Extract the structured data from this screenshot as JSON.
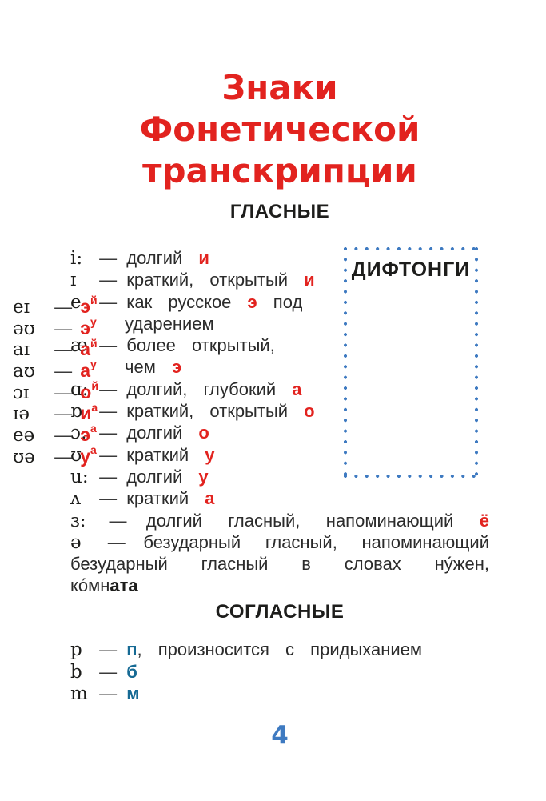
{
  "glyphs": {
    "dash": "—"
  },
  "colors": {
    "title_red": "#e2231f",
    "vowel_accent_red": "#e2231f",
    "consonant_accent_blue": "#166a94",
    "page_number_blue": "#3e7ac1",
    "dotted_border_blue": "#3e7ac1",
    "text_black": "#1d1d1b"
  },
  "title": {
    "lines": [
      "Знаки",
      "Фонетической",
      "транскрипции"
    ]
  },
  "sections": {
    "vowels": {
      "heading": "ГЛАСНЫЕ",
      "rows": [
        {
          "sym": "i:",
          "pre": "долгий ",
          "accent": "и"
        },
        {
          "sym": "ɪ",
          "pre": "краткий, открытый ",
          "accent": "и"
        },
        {
          "sym": "e",
          "pre": "как русское ",
          "accent": "э",
          "post": " под"
        },
        {
          "pre": "ударением"
        },
        {
          "sym": "æ",
          "pre": "более открытый,"
        },
        {
          "pre": "чем ",
          "accent": "э"
        },
        {
          "sym": "ɑ:",
          "pre": "долгий, глубокий ",
          "accent": "а"
        },
        {
          "sym": "ɒ",
          "pre": "краткий, открытый ",
          "accent": "о"
        },
        {
          "sym": "ɔ:",
          "pre": "долгий ",
          "accent": "о"
        },
        {
          "sym": "ʊ",
          "pre": "краткий ",
          "accent": "у"
        },
        {
          "sym": "u:",
          "pre": "долгий ",
          "accent": "у"
        },
        {
          "sym": "ʌ",
          "pre": "краткий ",
          "accent": "а"
        },
        {
          "sym": "ɜ:",
          "pre": "долгий гласный, напоминающий ",
          "accent": "ё"
        },
        {
          "sym": "ə",
          "pre": "безударный гласный, напоминающий"
        },
        {
          "pre": "безударный гласный в словах ну́жен,"
        },
        {
          "pre": "ко́мн",
          "boldpart": "ата"
        }
      ]
    },
    "diphthongs": {
      "heading": "ДИФТОНГИ",
      "rows": [
        {
          "sym": "eɪ",
          "base": "э",
          "sup": "й"
        },
        {
          "sym": "əʊ",
          "base": "э",
          "sup": "у"
        },
        {
          "sym": "aɪ",
          "base": "а",
          "sup": "й"
        },
        {
          "sym": "aʊ",
          "base": "а",
          "sup": "у"
        },
        {
          "sym": "ɔɪ",
          "base": "о",
          "sup": "й"
        },
        {
          "sym": "ɪə",
          "base": "и",
          "sup": "а"
        },
        {
          "sym": "eə",
          "base": "э",
          "sup": "а"
        },
        {
          "sym": "ʊə",
          "base": "у",
          "sup": "а"
        }
      ]
    },
    "consonants": {
      "heading": "СОГЛАСНЫЕ",
      "rows": [
        {
          "sym": "p",
          "accent": "п",
          "post": ", произносится с придыханием"
        },
        {
          "sym": "b",
          "accent": "б"
        },
        {
          "sym": "m",
          "accent": "м"
        }
      ]
    }
  },
  "page": {
    "number": "4"
  }
}
